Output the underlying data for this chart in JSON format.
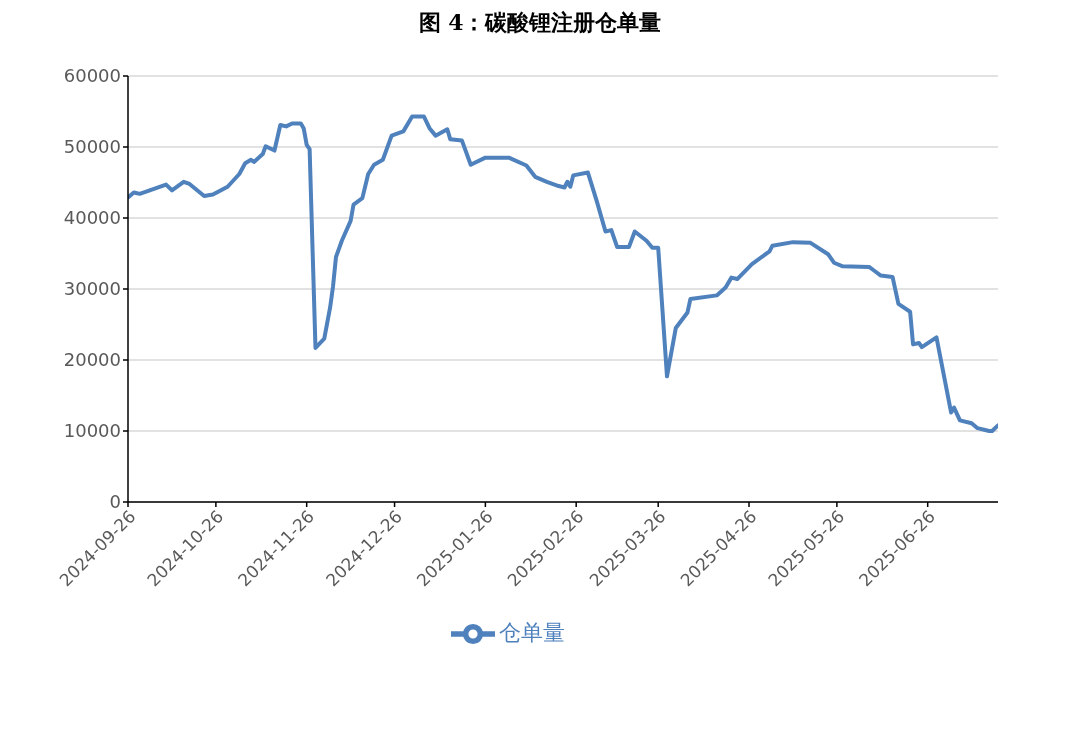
{
  "chart_data": {
    "type": "line",
    "title": "图 4：碳酸锂注册仓单量",
    "x": [
      "2024-09-26",
      "2024-09-28",
      "2024-09-30",
      "2024-10-09",
      "2024-10-11",
      "2024-10-15",
      "2024-10-17",
      "2024-10-22",
      "2024-10-25",
      "2024-10-30",
      "2024-11-03",
      "2024-11-05",
      "2024-11-07",
      "2024-11-08",
      "2024-11-11",
      "2024-11-12",
      "2024-11-15",
      "2024-11-17",
      "2024-11-19",
      "2024-11-21",
      "2024-11-24",
      "2024-11-25",
      "2024-11-26",
      "2024-11-27",
      "2024-11-29",
      "2024-12-02",
      "2024-12-04",
      "2024-12-05",
      "2024-12-06",
      "2024-12-08",
      "2024-12-11",
      "2024-12-12",
      "2024-12-15",
      "2024-12-17",
      "2024-12-19",
      "2024-12-22",
      "2024-12-25",
      "2024-12-29",
      "2025-01-01",
      "2025-01-05",
      "2025-01-07",
      "2025-01-09",
      "2025-01-13",
      "2025-01-14",
      "2025-01-18",
      "2025-01-21",
      "2025-01-26",
      "2025-02-03",
      "2025-02-09",
      "2025-02-12",
      "2025-02-16",
      "2025-02-20",
      "2025-02-22",
      "2025-02-23",
      "2025-02-24",
      "2025-02-25",
      "2025-03-02",
      "2025-03-05",
      "2025-03-08",
      "2025-03-10",
      "2025-03-12",
      "2025-03-16",
      "2025-03-18",
      "2025-03-22",
      "2025-03-24",
      "2025-03-26",
      "2025-03-29",
      "2025-04-01",
      "2025-04-05",
      "2025-04-06",
      "2025-04-15",
      "2025-04-18",
      "2025-04-20",
      "2025-04-22",
      "2025-04-27",
      "2025-05-03",
      "2025-05-04",
      "2025-05-11",
      "2025-05-17",
      "2025-05-23",
      "2025-05-25",
      "2025-05-28",
      "2025-06-06",
      "2025-06-08",
      "2025-06-10",
      "2025-06-14",
      "2025-06-15",
      "2025-06-16",
      "2025-06-20",
      "2025-06-21",
      "2025-06-23",
      "2025-06-24",
      "2025-06-29",
      "2025-07-04",
      "2025-07-05",
      "2025-07-07",
      "2025-07-11",
      "2025-07-13",
      "2025-07-17",
      "2025-07-18",
      "2025-07-20"
    ],
    "series": [
      {
        "name": "仓单量",
        "color": "#4f81bd",
        "values": [
          42900,
          43600,
          43400,
          44700,
          43900,
          45100,
          44800,
          43100,
          43300,
          44400,
          46200,
          47700,
          48200,
          47900,
          49000,
          50100,
          49500,
          53100,
          52900,
          53300,
          53300,
          52600,
          50300,
          49700,
          21700,
          23000,
          27400,
          30400,
          34500,
          36800,
          39600,
          41900,
          42800,
          46200,
          47500,
          48200,
          51600,
          52200,
          54300,
          54300,
          52600,
          51600,
          52500,
          51100,
          50900,
          47500,
          48500,
          48500,
          47400,
          45800,
          45100,
          44500,
          44300,
          45100,
          44400,
          46000,
          46400,
          42400,
          38100,
          38300,
          35900,
          35900,
          38100,
          36800,
          35800,
          35800,
          17700,
          24500,
          26700,
          28600,
          29100,
          30200,
          31600,
          31400,
          33500,
          35300,
          36100,
          36600,
          36500,
          34900,
          33700,
          33200,
          33100,
          32500,
          31900,
          31700,
          29800,
          27900,
          26800,
          22200,
          22400,
          21800,
          23200,
          12600,
          13300,
          11500,
          11100,
          10400,
          10000,
          10000,
          10800
        ]
      }
    ],
    "xlim": [
      "2024-09-26",
      "2025-07-20"
    ],
    "xticks": [
      "2024-09-26",
      "2024-10-26",
      "2024-11-26",
      "2024-12-26",
      "2025-01-26",
      "2025-02-26",
      "2025-03-26",
      "2025-04-26",
      "2025-05-26",
      "2025-06-26"
    ],
    "ylim": [
      0,
      60000
    ],
    "yticks": [
      0,
      10000,
      20000,
      30000,
      40000,
      50000,
      60000
    ],
    "grid": "y",
    "legend": "bottom",
    "marker": "none",
    "line_style": "solid"
  }
}
